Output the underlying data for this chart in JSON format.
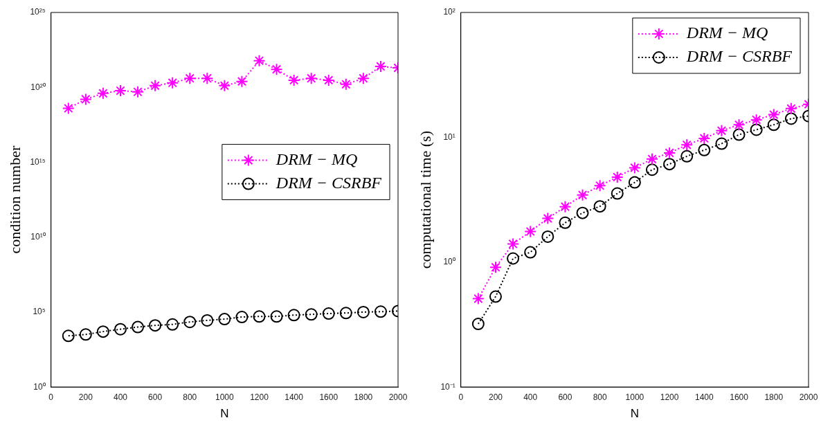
{
  "chart_data": [
    {
      "type": "line",
      "xlabel": "N",
      "ylabel": "condition number",
      "log": "y",
      "grid": false,
      "legend": "right",
      "x": [
        100,
        200,
        300,
        400,
        500,
        600,
        700,
        800,
        900,
        1000,
        1100,
        1200,
        1300,
        1400,
        1500,
        1600,
        1700,
        1800,
        1900,
        2000
      ],
      "xlim": [
        0,
        2000
      ],
      "xticks": [
        0,
        200,
        400,
        600,
        800,
        1000,
        1200,
        1400,
        1600,
        1800,
        2000
      ],
      "ylim": [
        1,
        1e+25
      ],
      "yticks": [
        {
          "value": 1,
          "label": "10⁰"
        },
        {
          "value": 100000.0,
          "label": "10⁵"
        },
        {
          "value": 10000000000.0,
          "label": "10¹⁰"
        },
        {
          "value": 1000000000000000.0,
          "label": "10¹⁵"
        },
        {
          "value": 1e+20,
          "label": "10²⁰"
        },
        {
          "value": 1e+25,
          "label": "10²⁵"
        }
      ],
      "series": [
        {
          "name": "DRM − MQ",
          "color": "#ff00ff",
          "marker": "cross",
          "line_style": "dotted",
          "values": [
            4e+18,
            1.6e+19,
            4e+19,
            6e+19,
            5e+19,
            1.3e+20,
            2e+20,
            4e+20,
            4e+20,
            1.3e+20,
            2.5e+20,
            6e+21,
            1.6e+21,
            3e+20,
            4e+20,
            3e+20,
            1.6e+20,
            4e+20,
            2.5e+21,
            2e+21
          ]
        },
        {
          "name": "DRM − CSRBF",
          "color": "#000000",
          "marker": "circle",
          "line_style": "dotted",
          "values": [
            2600,
            3200,
            5000,
            7200,
            10000.0,
            13000.0,
            15000.0,
            22000.0,
            28000.0,
            34000.0,
            47000.0,
            51000.0,
            51000.0,
            63000.0,
            70000.0,
            80000.0,
            87000.0,
            100000.0,
            107000.0,
            117000.0
          ]
        }
      ]
    },
    {
      "type": "line",
      "xlabel": "N",
      "ylabel": "computational time (s)",
      "log": "y",
      "grid": false,
      "legend": "top right",
      "x": [
        100,
        200,
        300,
        400,
        500,
        600,
        700,
        800,
        900,
        1000,
        1100,
        1200,
        1300,
        1400,
        1500,
        1600,
        1700,
        1800,
        1900,
        2000
      ],
      "xlim": [
        0,
        2000
      ],
      "xticks": [
        0,
        200,
        400,
        600,
        800,
        1000,
        1200,
        1400,
        1600,
        1800,
        2000
      ],
      "ylim": [
        0.1,
        100
      ],
      "yticks": [
        {
          "value": 0.1,
          "label": "10⁻¹"
        },
        {
          "value": 1,
          "label": "10⁰"
        },
        {
          "value": 10,
          "label": "10¹"
        },
        {
          "value": 100,
          "label": "10²"
        }
      ],
      "series": [
        {
          "name": "DRM − MQ",
          "color": "#ff00ff",
          "marker": "cross",
          "line_style": "dotted",
          "values": [
            0.51,
            0.91,
            1.4,
            1.76,
            2.24,
            2.78,
            3.45,
            4.1,
            4.8,
            5.7,
            6.7,
            7.5,
            8.7,
            9.8,
            11.3,
            12.6,
            13.8,
            15.2,
            17,
            18.4
          ]
        },
        {
          "name": "DRM − CSRBF",
          "color": "#000000",
          "marker": "circle",
          "line_style": "dotted",
          "values": [
            0.32,
            0.53,
            1.07,
            1.2,
            1.6,
            2.07,
            2.48,
            2.8,
            3.55,
            4.35,
            5.5,
            6.1,
            7.05,
            7.9,
            8.9,
            10.5,
            11.5,
            12.6,
            14.1,
            14.8
          ]
        }
      ]
    }
  ]
}
